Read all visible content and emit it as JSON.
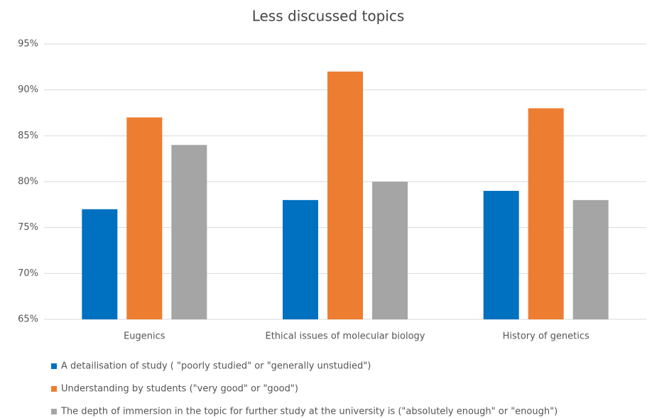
{
  "chart_data": {
    "type": "bar",
    "title": "Less discussed topics",
    "categories": [
      "Eugenics",
      "Ethical issues of molecular biology",
      "History of genetics"
    ],
    "series": [
      {
        "name": "A detailisation of study ( \"poorly studied\" or \"generally unstudied\")",
        "color": "#0070c0",
        "values": [
          77,
          78,
          79
        ]
      },
      {
        "name": "Understanding by students (\"very good\" or \"good\")",
        "color": "#ed7d31",
        "values": [
          87,
          92,
          88
        ]
      },
      {
        "name": "The depth of immersion in the topic for further study at the university is (\"absolutely enough\" or \"enough\")",
        "color": "#a5a5a5",
        "values": [
          84,
          80,
          78
        ]
      }
    ],
    "ylim": [
      65,
      95
    ],
    "yticks": [
      {
        "value": 65,
        "label": "65%"
      },
      {
        "value": 70,
        "label": "70%"
      },
      {
        "value": 75,
        "label": "75%"
      },
      {
        "value": 80,
        "label": "80%"
      },
      {
        "value": 85,
        "label": "85%"
      },
      {
        "value": 90,
        "label": "90%"
      },
      {
        "value": 95,
        "label": "95%"
      }
    ],
    "grid": true,
    "legend": "bottom"
  }
}
